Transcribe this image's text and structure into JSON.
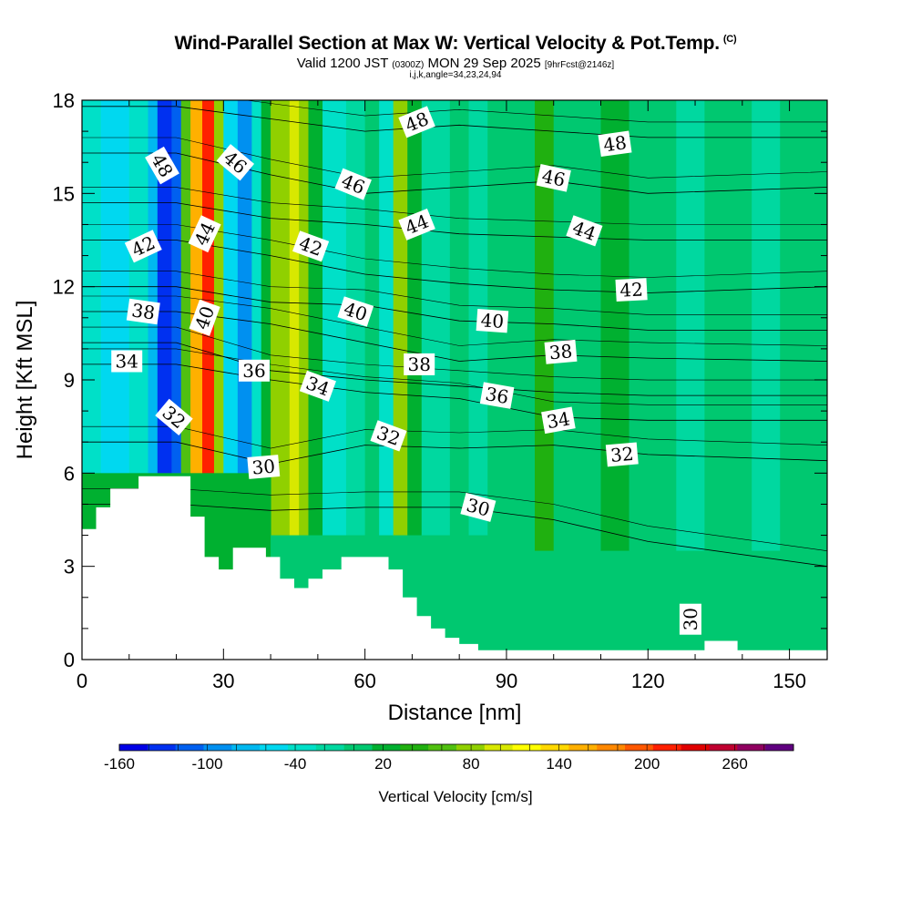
{
  "header": {
    "title": "Wind-Parallel Section at Max W: Vertical Velocity & Pot.Temp.",
    "copyright": "(C)",
    "valid_prefix": "Valid 1200 JST",
    "utc": "(0300Z)",
    "valid_suffix": "MON 29 Sep 2025",
    "forecast": "[9hrFcst@2146z]",
    "indices": "i,j,k,angle=34,23,24,94"
  },
  "chart_data": {
    "type": "heatmap",
    "title": "Wind-Parallel Section at Max W: Vertical Velocity & Pot.Temp.",
    "xlabel": "Distance [nm]",
    "ylabel": "Height [Kft MSL]",
    "xlim": [
      0,
      158
    ],
    "ylim": [
      0,
      18
    ],
    "xticks": [
      0,
      30,
      60,
      90,
      120,
      150
    ],
    "yticks": [
      0,
      3,
      6,
      9,
      12,
      15,
      18
    ],
    "colorbar": {
      "title": "Vertical Velocity [cm/s]",
      "min": -160,
      "max": 300,
      "step": 20,
      "tick_values": [
        -160,
        -100,
        -40,
        20,
        80,
        140,
        200,
        260
      ],
      "colors": [
        "#0000e6",
        "#0030f0",
        "#0060f0",
        "#0090f0",
        "#00b8f0",
        "#00d8f0",
        "#00e0c8",
        "#00d8a0",
        "#00c870",
        "#00b030",
        "#20b010",
        "#50c010",
        "#90d000",
        "#d8e800",
        "#ffff00",
        "#ffd800",
        "#ffb000",
        "#ff8800",
        "#ff5800",
        "#ff2000",
        "#e00000",
        "#c00030",
        "#900060",
        "#600080"
      ]
    },
    "vertical_velocity_columns": [
      {
        "x0": 0,
        "x1": 4,
        "value": -40
      },
      {
        "x0": 4,
        "x1": 10,
        "value": -60
      },
      {
        "x0": 10,
        "x1": 14,
        "value": -40
      },
      {
        "x0": 14,
        "x1": 16,
        "value": -80
      },
      {
        "x0": 16,
        "x1": 19,
        "value": -130
      },
      {
        "x0": 19,
        "x1": 21,
        "value": -110
      },
      {
        "x0": 21,
        "x1": 23,
        "value": 60
      },
      {
        "x0": 23,
        "x1": 25.5,
        "value": 160
      },
      {
        "x0": 25.5,
        "x1": 28,
        "value": 220
      },
      {
        "x0": 28,
        "x1": 30,
        "value": 80
      },
      {
        "x0": 30,
        "x1": 33,
        "value": -60
      },
      {
        "x0": 33,
        "x1": 36,
        "value": -100
      },
      {
        "x0": 36,
        "x1": 38,
        "value": -40
      },
      {
        "x0": 38,
        "x1": 40,
        "value": 20
      },
      {
        "x0": 40,
        "x1": 44,
        "value": 80
      },
      {
        "x0": 44,
        "x1": 46,
        "value": 100
      },
      {
        "x0": 46,
        "x1": 48,
        "value": 80
      },
      {
        "x0": 48,
        "x1": 51,
        "value": 20
      },
      {
        "x0": 51,
        "x1": 56,
        "value": -40
      },
      {
        "x0": 56,
        "x1": 60,
        "value": -20
      },
      {
        "x0": 60,
        "x1": 63,
        "value": 0
      },
      {
        "x0": 63,
        "x1": 66,
        "value": -40
      },
      {
        "x0": 66,
        "x1": 69,
        "value": 80
      },
      {
        "x0": 69,
        "x1": 72,
        "value": 20
      },
      {
        "x0": 72,
        "x1": 78,
        "value": -20
      },
      {
        "x0": 78,
        "x1": 82,
        "value": 0
      },
      {
        "x0": 82,
        "x1": 86,
        "value": -20
      },
      {
        "x0": 86,
        "x1": 96,
        "value": 0
      },
      {
        "x0": 96,
        "x1": 100,
        "value": 40
      },
      {
        "x0": 100,
        "x1": 110,
        "value": 0
      },
      {
        "x0": 110,
        "x1": 116,
        "value": 20
      },
      {
        "x0": 116,
        "x1": 126,
        "value": 0
      },
      {
        "x0": 126,
        "x1": 132,
        "value": -20
      },
      {
        "x0": 132,
        "x1": 142,
        "value": 0
      },
      {
        "x0": 142,
        "x1": 148,
        "value": -20
      },
      {
        "x0": 148,
        "x1": 158,
        "value": 0
      }
    ],
    "lower_layer": [
      {
        "x0": 0,
        "x1": 40,
        "ytop": 6,
        "value": 20
      },
      {
        "x0": 40,
        "x1": 90,
        "ytop": 4,
        "value": 0
      },
      {
        "x0": 90,
        "x1": 158,
        "ytop": 3.5,
        "value": 0
      }
    ],
    "terrain": [
      [
        0,
        4.2
      ],
      [
        3,
        4.2
      ],
      [
        3,
        4.9
      ],
      [
        6,
        4.9
      ],
      [
        6,
        5.5
      ],
      [
        12,
        5.5
      ],
      [
        12,
        5.9
      ],
      [
        23,
        5.9
      ],
      [
        23,
        4.6
      ],
      [
        26,
        4.6
      ],
      [
        26,
        3.3
      ],
      [
        29,
        3.3
      ],
      [
        29,
        2.9
      ],
      [
        32,
        2.9
      ],
      [
        32,
        3.6
      ],
      [
        39,
        3.6
      ],
      [
        39,
        3.3
      ],
      [
        42,
        3.3
      ],
      [
        42,
        2.6
      ],
      [
        45,
        2.6
      ],
      [
        45,
        2.3
      ],
      [
        48,
        2.3
      ],
      [
        48,
        2.6
      ],
      [
        51,
        2.6
      ],
      [
        51,
        2.9
      ],
      [
        55,
        2.9
      ],
      [
        55,
        3.3
      ],
      [
        65,
        3.3
      ],
      [
        65,
        2.9
      ],
      [
        68,
        2.9
      ],
      [
        68,
        2.0
      ],
      [
        71,
        2.0
      ],
      [
        71,
        1.4
      ],
      [
        74,
        1.4
      ],
      [
        74,
        1.0
      ],
      [
        77,
        1.0
      ],
      [
        77,
        0.7
      ],
      [
        80,
        0.7
      ],
      [
        80,
        0.5
      ],
      [
        84,
        0.5
      ],
      [
        84,
        0.3
      ],
      [
        132,
        0.3
      ],
      [
        132,
        0.6
      ],
      [
        139,
        0.6
      ],
      [
        139,
        0.3
      ],
      [
        158,
        0.3
      ]
    ],
    "theta_contours": [
      {
        "value": 30,
        "x": [
          0,
          20,
          40,
          60,
          80,
          100,
          120,
          158
        ],
        "y": [
          5.0,
          5.0,
          4.8,
          4.9,
          4.9,
          4.5,
          3.8,
          3.0
        ]
      },
      {
        "value": 32,
        "x": [
          0,
          20,
          40,
          60,
          80,
          100,
          120,
          158
        ],
        "y": [
          7.0,
          7.0,
          6.3,
          6.9,
          6.8,
          6.9,
          6.6,
          6.4
        ]
      },
      {
        "value": 34,
        "x": [
          0,
          20,
          40,
          60,
          80,
          100,
          120,
          158
        ],
        "y": [
          9.5,
          9.5,
          9.0,
          8.6,
          8.4,
          7.8,
          7.7,
          7.7
        ]
      },
      {
        "value": 36,
        "x": [
          0,
          20,
          40,
          60,
          80,
          100,
          120,
          158
        ],
        "y": [
          10.2,
          10.2,
          9.3,
          9.0,
          8.8,
          8.6,
          8.5,
          8.5
        ]
      },
      {
        "value": 38,
        "x": [
          0,
          20,
          40,
          60,
          80,
          100,
          120,
          158
        ],
        "y": [
          11.2,
          11.2,
          10.8,
          10.2,
          9.6,
          9.8,
          9.7,
          9.6
        ]
      },
      {
        "value": 40,
        "x": [
          0,
          20,
          40,
          60,
          80,
          100,
          120,
          158
        ],
        "y": [
          12.0,
          12.0,
          11.5,
          11.4,
          10.9,
          10.8,
          10.6,
          10.6
        ]
      },
      {
        "value": 42,
        "x": [
          0,
          20,
          40,
          60,
          80,
          100,
          120,
          158
        ],
        "y": [
          13.5,
          13.5,
          13.0,
          12.4,
          12.1,
          11.9,
          11.8,
          12.0
        ]
      },
      {
        "value": 44,
        "x": [
          0,
          20,
          40,
          60,
          80,
          100,
          120,
          158
        ],
        "y": [
          14.7,
          14.7,
          14.2,
          14.0,
          13.7,
          13.6,
          13.5,
          13.5
        ]
      },
      {
        "value": 46,
        "x": [
          0,
          20,
          40,
          60,
          80,
          100,
          120,
          158
        ],
        "y": [
          16.3,
          16.3,
          15.6,
          15.0,
          15.2,
          15.4,
          15.0,
          15.2
        ]
      },
      {
        "value": 48,
        "x": [
          0,
          20,
          40,
          60,
          80,
          100,
          120,
          158
        ],
        "y": [
          17.8,
          17.8,
          17.4,
          17.0,
          17.2,
          17.0,
          16.8,
          16.8
        ]
      }
    ],
    "contour_labels": [
      {
        "text": "48",
        "x": 17,
        "y": 15.9,
        "angle": 60
      },
      {
        "text": "46",
        "x": 32.5,
        "y": 16.0,
        "angle": 40
      },
      {
        "text": "48",
        "x": 71,
        "y": 17.3,
        "angle": -22
      },
      {
        "text": "48",
        "x": 113,
        "y": 16.6,
        "angle": -8
      },
      {
        "text": "46",
        "x": 57.5,
        "y": 15.3,
        "angle": 22
      },
      {
        "text": "46",
        "x": 100,
        "y": 15.5,
        "angle": 12
      },
      {
        "text": "44",
        "x": 26,
        "y": 13.7,
        "angle": -65
      },
      {
        "text": "44",
        "x": 71,
        "y": 14.0,
        "angle": -22
      },
      {
        "text": "44",
        "x": 106.5,
        "y": 13.8,
        "angle": 20
      },
      {
        "text": "42",
        "x": 13,
        "y": 13.3,
        "angle": -25
      },
      {
        "text": "42",
        "x": 48.5,
        "y": 13.3,
        "angle": 20
      },
      {
        "text": "42",
        "x": 116.5,
        "y": 11.9,
        "angle": -3
      },
      {
        "text": "38",
        "x": 13,
        "y": 11.2,
        "angle": 8
      },
      {
        "text": "40",
        "x": 26,
        "y": 11.0,
        "angle": -70
      },
      {
        "text": "40",
        "x": 58,
        "y": 11.2,
        "angle": 18
      },
      {
        "text": "40",
        "x": 87,
        "y": 10.9,
        "angle": 4
      },
      {
        "text": "34",
        "x": 9.5,
        "y": 9.6,
        "angle": 0
      },
      {
        "text": "36",
        "x": 36.5,
        "y": 9.3,
        "angle": 0
      },
      {
        "text": "34",
        "x": 50,
        "y": 8.8,
        "angle": 20
      },
      {
        "text": "38",
        "x": 71.5,
        "y": 9.5,
        "angle": 0
      },
      {
        "text": "38",
        "x": 101.5,
        "y": 9.9,
        "angle": -5
      },
      {
        "text": "36",
        "x": 88,
        "y": 8.5,
        "angle": 10
      },
      {
        "text": "34",
        "x": 101,
        "y": 7.7,
        "angle": -10
      },
      {
        "text": "32",
        "x": 19.5,
        "y": 7.8,
        "angle": 40
      },
      {
        "text": "32",
        "x": 65,
        "y": 7.2,
        "angle": 20
      },
      {
        "text": "32",
        "x": 114.5,
        "y": 6.6,
        "angle": -5
      },
      {
        "text": "30",
        "x": 38.5,
        "y": 6.2,
        "angle": -5
      },
      {
        "text": "30",
        "x": 84,
        "y": 4.9,
        "angle": 15
      },
      {
        "text": "30",
        "x": 129,
        "y": 1.3,
        "angle": -90
      }
    ]
  }
}
